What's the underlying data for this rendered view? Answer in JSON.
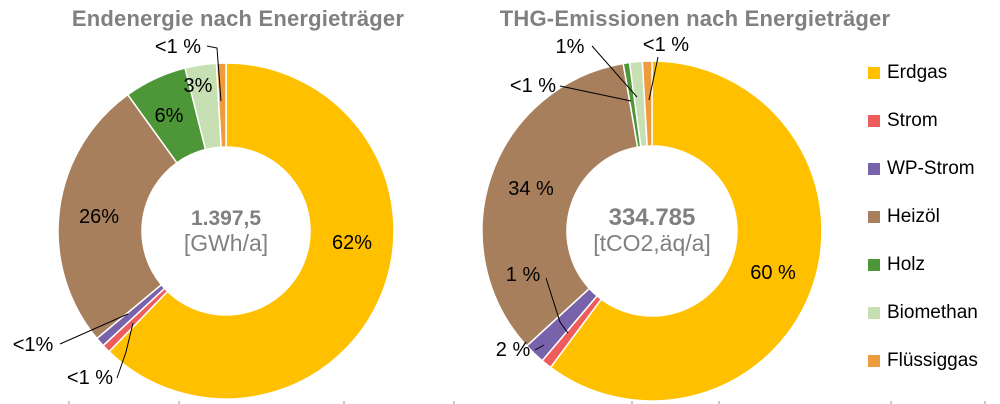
{
  "legend": {
    "items": [
      {
        "label": "Erdgas",
        "color": "#FFC000"
      },
      {
        "label": "Strom",
        "color": "#EE5C5C"
      },
      {
        "label": "WP-Strom",
        "color": "#7862A9"
      },
      {
        "label": "Heizöl",
        "color": "#A87F5C"
      },
      {
        "label": "Holz",
        "color": "#4E9738"
      },
      {
        "label": "Biomethan",
        "color": "#C6E0B4"
      },
      {
        "label": "Flüssiggas",
        "color": "#EE9B3D"
      }
    ]
  },
  "chart_data": [
    {
      "type": "pie",
      "style": "donut",
      "title": "Endenergie nach Energieträger",
      "center_label": {
        "value": "1.397,5",
        "unit": "[GWh/a]"
      },
      "categories": [
        "Erdgas",
        "Strom",
        "WP-Strom",
        "Heizöl",
        "Holz",
        "Biomethan",
        "Flüssiggas"
      ],
      "values_pct": [
        62,
        0.8,
        0.9,
        26,
        6,
        3,
        0.9
      ],
      "value_labels": [
        "62%",
        "<1 %",
        "<1%",
        "26%",
        "6%",
        "3%",
        "<1 %"
      ],
      "colors": [
        "#FFC000",
        "#EE5C5C",
        "#7862A9",
        "#A87F5C",
        "#4E9738",
        "#C6E0B4",
        "#EE9B3D"
      ],
      "start_angle_deg": 0,
      "direction": "clockwise",
      "legend_position": "right-shared"
    },
    {
      "type": "pie",
      "style": "donut",
      "title": "THG-Emissionen nach Energieträger",
      "center_label": {
        "value": "334.785",
        "unit": "[tCO2,äq/a]"
      },
      "categories": [
        "Erdgas",
        "Strom",
        "WP-Strom",
        "Heizöl",
        "Holz",
        "Biomethan",
        "Flüssiggas"
      ],
      "values_pct": [
        60,
        1,
        2,
        34,
        0.6,
        1.2,
        0.9
      ],
      "value_labels": [
        "60 %",
        "1 %",
        "2 %",
        "34 %",
        "<1 %",
        "1%",
        "<1 %"
      ],
      "colors": [
        "#FFC000",
        "#EE5C5C",
        "#7862A9",
        "#A87F5C",
        "#4E9738",
        "#C6E0B4",
        "#EE9B3D"
      ],
      "start_angle_deg": 0,
      "direction": "clockwise",
      "legend_position": "right-shared"
    }
  ]
}
